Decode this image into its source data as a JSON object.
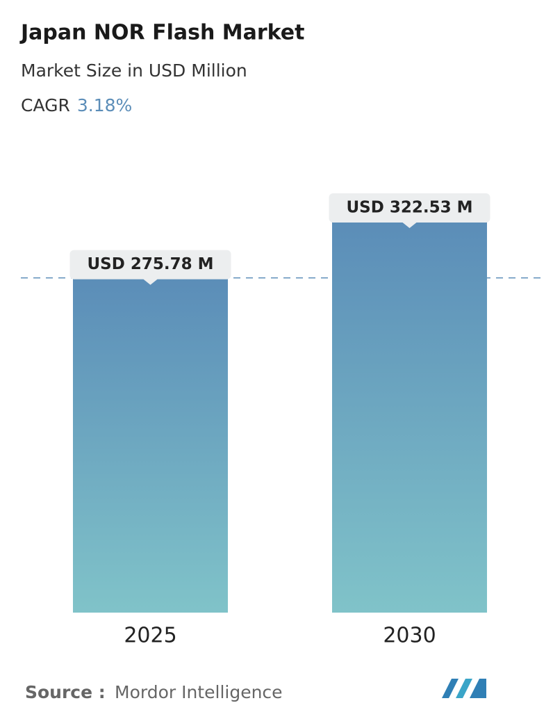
{
  "chart_data": {
    "type": "bar",
    "title": "Japan NOR Flash Market",
    "subtitle": "Market Size in USD Million",
    "cagr_label": "CAGR",
    "cagr_value": "3.18%",
    "categories": [
      "2025",
      "2030"
    ],
    "values": [
      275.78,
      322.53
    ],
    "value_labels": [
      "USD 275.78 M",
      "USD 322.53 M"
    ],
    "color_top": "#5b8db8",
    "color_bottom": "#80c3c9",
    "source_label": "Source :",
    "source": "Mordor Intelligence"
  }
}
